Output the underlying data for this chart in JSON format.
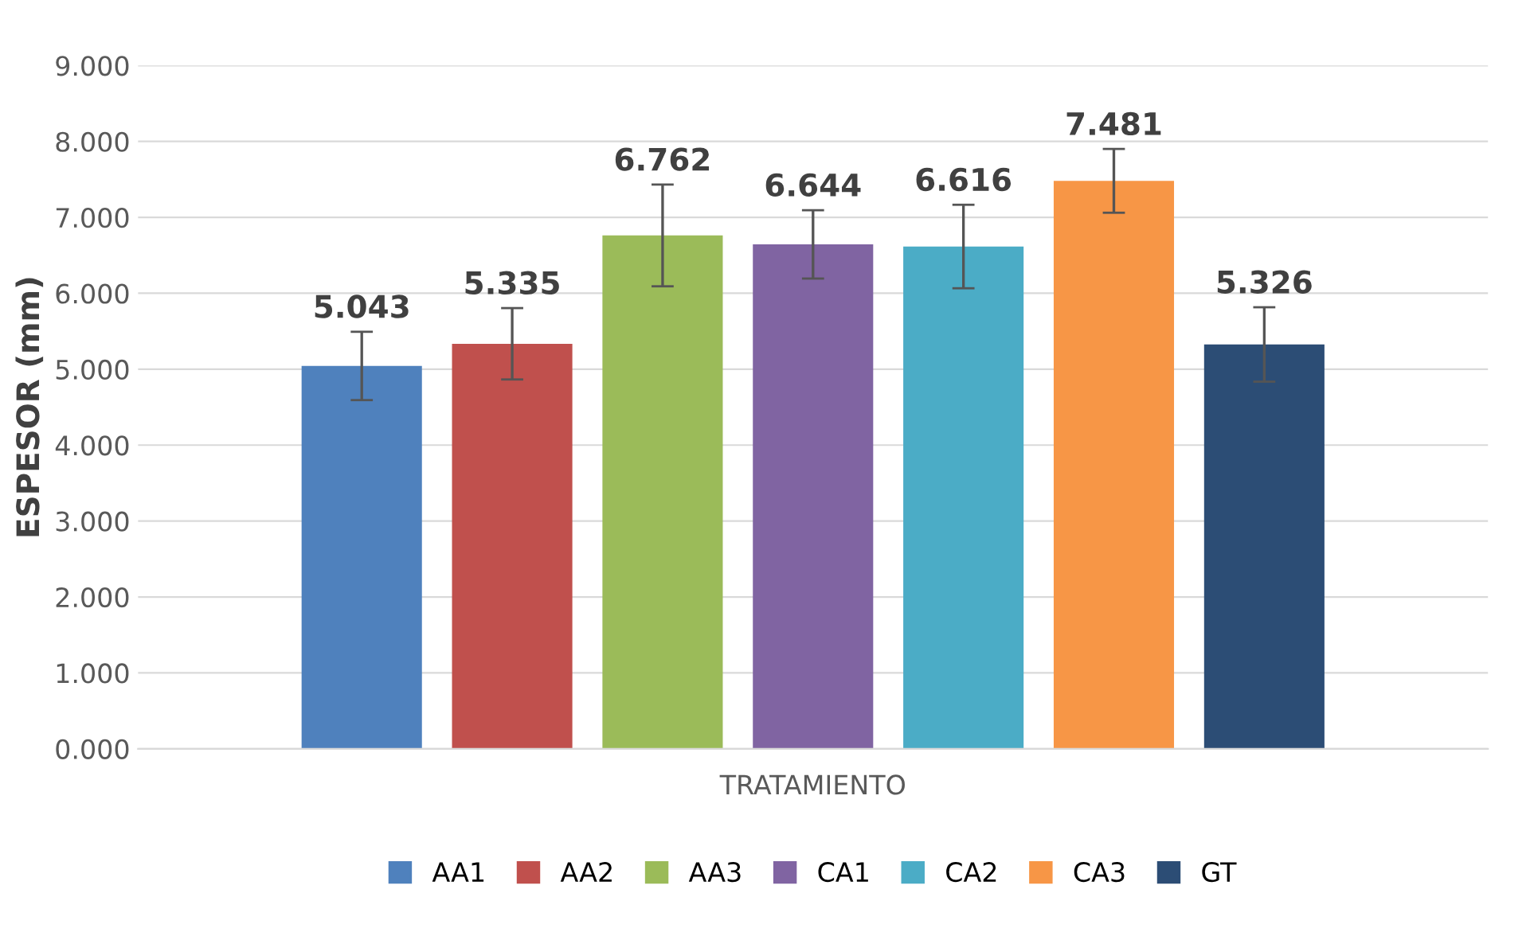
{
  "chart_data": {
    "type": "bar",
    "xlabel": "TRATAMIENTO",
    "ylabel": "ESPESOR (mm)",
    "categories": [
      null
    ],
    "series": [
      {
        "name": "AA1",
        "color": "#4f81bd",
        "values": [
          5.043
        ],
        "errors": [
          0.45
        ]
      },
      {
        "name": "AA2",
        "color": "#c0504d",
        "values": [
          5.335
        ],
        "errors": [
          0.47
        ]
      },
      {
        "name": "AA3",
        "color": "#9bbb59",
        "values": [
          6.762
        ],
        "errors": [
          0.67
        ]
      },
      {
        "name": "CA1",
        "color": "#8064a2",
        "values": [
          6.644
        ],
        "errors": [
          0.45
        ]
      },
      {
        "name": "CA2",
        "color": "#4bacc6",
        "values": [
          6.616
        ],
        "errors": [
          0.55
        ]
      },
      {
        "name": "CA3",
        "color": "#f79646",
        "values": [
          7.481
        ],
        "errors": [
          0.42
        ]
      },
      {
        "name": "GT",
        "color": "#2c4d75",
        "values": [
          5.326
        ],
        "errors": [
          0.49
        ]
      }
    ],
    "ylim": [
      0,
      9
    ],
    "yticks": [
      {
        "value": 0,
        "label": "0.000"
      },
      {
        "value": 1,
        "label": "1.000"
      },
      {
        "value": 2,
        "label": "2.000"
      },
      {
        "value": 3,
        "label": "3.000"
      },
      {
        "value": 4,
        "label": "4.000"
      },
      {
        "value": 5,
        "label": "5.000"
      },
      {
        "value": 6,
        "label": "6.000"
      },
      {
        "value": 7,
        "label": "7.000"
      },
      {
        "value": 8,
        "label": "8.000"
      },
      {
        "value": 9,
        "label": "9.000"
      }
    ],
    "grid": "y",
    "legend": "bottom",
    "data_labels": true
  }
}
